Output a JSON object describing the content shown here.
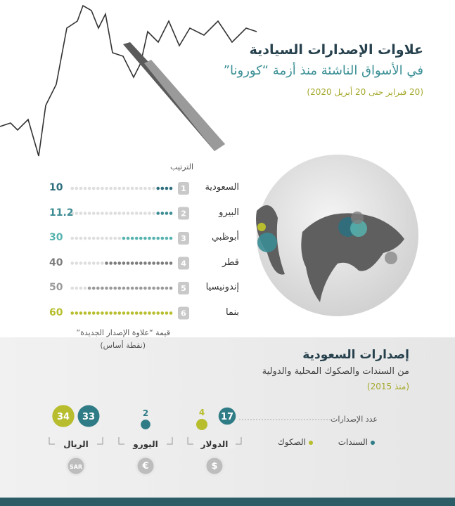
{
  "header": {
    "title": "علاوات الإصدارات السيادية",
    "subtitle": "في الأسواق الناشئة منذ أزمة “كورونا”",
    "period": "(20 فبراير حتى 20 أبريل 2020)"
  },
  "ranking": {
    "heading": "الترتيب",
    "rows": [
      {
        "rank": 1,
        "name": "السعودية",
        "value": 10,
        "color": "#2e6f7e"
      },
      {
        "rank": 2,
        "name": "البيرو",
        "value": 11.2,
        "color": "#3c8c93"
      },
      {
        "rank": 3,
        "name": "أبوظبي",
        "value": 30,
        "color": "#57b3ae"
      },
      {
        "rank": 4,
        "name": "قطر",
        "value": 40,
        "color": "#7d7d7d"
      },
      {
        "rank": 5,
        "name": "إندونيسيا",
        "value": 50,
        "color": "#9a9a9a"
      },
      {
        "rank": 6,
        "name": "بنما",
        "value": 60,
        "color": "#b8be2e"
      }
    ],
    "note": "قيمة “علاوة الإصدار الجديدة”",
    "unit": "(نقطة أساس)"
  },
  "issuance": {
    "title": "إصدارات السعودية",
    "subtitle": "من السندات والصكوك المحلية والدولية",
    "period": "(منذ 2015)",
    "count_label": "عدد الإصدارات",
    "legend": [
      {
        "name": "السندات",
        "color": "#2f7c86"
      },
      {
        "name": "الصكوك",
        "color": "#b7bd2d"
      }
    ],
    "currencies": [
      {
        "name": "الدولار",
        "icon": "$",
        "bonds": 17,
        "sukuk": 4
      },
      {
        "name": "اليورو",
        "icon": "€",
        "bonds": 2
      },
      {
        "name": "الريال",
        "icon": "SAR",
        "bonds": 33,
        "sukuk": 34
      }
    ]
  }
}
